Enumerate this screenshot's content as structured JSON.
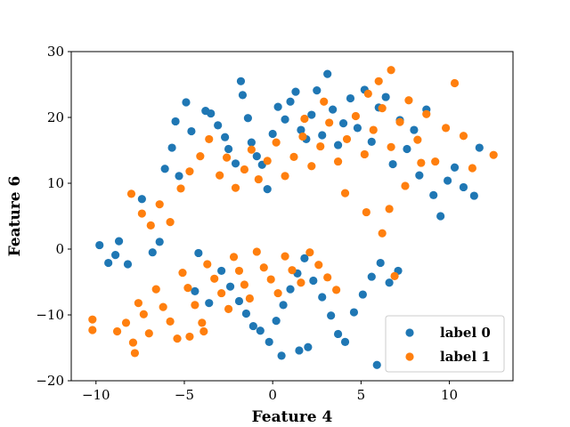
{
  "chart_data": {
    "type": "scatter",
    "xlabel": "Feature 4",
    "ylabel": "Feature 6",
    "xlim": [
      -11.4,
      13.6
    ],
    "ylim": [
      -20,
      30
    ],
    "xticks": [
      -10,
      -5,
      0,
      5,
      10
    ],
    "yticks": [
      -20,
      -10,
      0,
      10,
      20,
      30
    ],
    "grid": false,
    "legend_position": "lower-right",
    "series": [
      {
        "name": "label 0",
        "color": "#1f77b4",
        "points": [
          [
            -9.8,
            0.6
          ],
          [
            -9.3,
            -2.1
          ],
          [
            -8.9,
            -0.9
          ],
          [
            -8.7,
            1.2
          ],
          [
            -8.2,
            -2.3
          ],
          [
            -7.4,
            7.6
          ],
          [
            -6.8,
            -0.5
          ],
          [
            -6.4,
            1.1
          ],
          [
            -6.1,
            12.2
          ],
          [
            -5.7,
            15.4
          ],
          [
            -5.5,
            19.4
          ],
          [
            -5.3,
            11.1
          ],
          [
            -4.9,
            22.3
          ],
          [
            -4.6,
            17.9
          ],
          [
            -4.2,
            -0.6
          ],
          [
            -3.8,
            21.0
          ],
          [
            -3.5,
            20.6
          ],
          [
            -3.1,
            18.8
          ],
          [
            -2.7,
            17.0
          ],
          [
            -2.5,
            15.2
          ],
          [
            -2.1,
            13.0
          ],
          [
            -1.8,
            25.5
          ],
          [
            -1.7,
            23.4
          ],
          [
            -1.4,
            19.9
          ],
          [
            -1.2,
            16.2
          ],
          [
            -0.9,
            14.1
          ],
          [
            -0.6,
            12.8
          ],
          [
            -0.3,
            9.1
          ],
          [
            0.0,
            17.5
          ],
          [
            0.3,
            21.6
          ],
          [
            0.7,
            19.7
          ],
          [
            1.0,
            22.4
          ],
          [
            1.3,
            23.9
          ],
          [
            1.6,
            18.1
          ],
          [
            1.9,
            16.7
          ],
          [
            2.2,
            20.4
          ],
          [
            2.5,
            24.1
          ],
          [
            2.8,
            17.3
          ],
          [
            3.1,
            26.6
          ],
          [
            3.4,
            21.2
          ],
          [
            3.7,
            15.8
          ],
          [
            4.0,
            19.1
          ],
          [
            4.4,
            22.9
          ],
          [
            4.8,
            18.4
          ],
          [
            5.2,
            24.2
          ],
          [
            5.6,
            16.3
          ],
          [
            6.0,
            21.5
          ],
          [
            6.4,
            23.1
          ],
          [
            6.8,
            12.9
          ],
          [
            7.2,
            19.6
          ],
          [
            7.6,
            15.2
          ],
          [
            8.0,
            18.1
          ],
          [
            8.3,
            11.2
          ],
          [
            8.7,
            21.2
          ],
          [
            9.1,
            8.2
          ],
          [
            9.5,
            5.0
          ],
          [
            9.9,
            10.4
          ],
          [
            10.3,
            12.4
          ],
          [
            10.8,
            9.4
          ],
          [
            11.4,
            8.1
          ],
          [
            11.7,
            15.4
          ],
          [
            -2.9,
            -3.3
          ],
          [
            -2.4,
            -5.7
          ],
          [
            -1.9,
            -7.9
          ],
          [
            -1.5,
            -9.8
          ],
          [
            -1.1,
            -11.7
          ],
          [
            -0.7,
            -12.4
          ],
          [
            -0.2,
            -14.1
          ],
          [
            0.2,
            -10.9
          ],
          [
            0.6,
            -8.5
          ],
          [
            1.0,
            -6.1
          ],
          [
            1.4,
            -3.7
          ],
          [
            1.8,
            -1.4
          ],
          [
            2.3,
            -4.8
          ],
          [
            2.8,
            -7.3
          ],
          [
            3.3,
            -10.1
          ],
          [
            3.7,
            -12.9
          ],
          [
            4.1,
            -14.1
          ],
          [
            4.6,
            -9.6
          ],
          [
            5.1,
            -6.9
          ],
          [
            5.6,
            -4.2
          ],
          [
            6.1,
            -2.1
          ],
          [
            6.6,
            -5.1
          ],
          [
            7.1,
            -3.3
          ],
          [
            5.9,
            -17.6
          ],
          [
            0.5,
            -16.2
          ],
          [
            1.5,
            -15.4
          ],
          [
            2.0,
            -14.9
          ],
          [
            -3.6,
            -8.2
          ],
          [
            -4.4,
            -6.4
          ]
        ]
      },
      {
        "name": "label 1",
        "color": "#ff7f0e",
        "points": [
          [
            -10.2,
            -10.7
          ],
          [
            -10.2,
            -12.3
          ],
          [
            -8.8,
            -12.5
          ],
          [
            -8.3,
            -11.2
          ],
          [
            -7.9,
            -14.2
          ],
          [
            -7.8,
            -15.8
          ],
          [
            -7.6,
            -8.2
          ],
          [
            -7.3,
            -9.9
          ],
          [
            -7.0,
            -12.8
          ],
          [
            -6.6,
            -6.1
          ],
          [
            -6.2,
            -8.8
          ],
          [
            -5.8,
            -11.0
          ],
          [
            -5.4,
            -13.6
          ],
          [
            -5.1,
            -3.6
          ],
          [
            -4.8,
            -5.9
          ],
          [
            -4.4,
            -8.5
          ],
          [
            -4.0,
            -11.2
          ],
          [
            -3.7,
            -2.3
          ],
          [
            -3.3,
            -4.5
          ],
          [
            -2.9,
            -6.7
          ],
          [
            -2.5,
            -9.1
          ],
          [
            -2.2,
            -1.2
          ],
          [
            -1.9,
            -3.3
          ],
          [
            -1.6,
            -5.4
          ],
          [
            -1.3,
            -7.5
          ],
          [
            -0.9,
            -0.4
          ],
          [
            -0.5,
            -2.8
          ],
          [
            -0.1,
            -4.6
          ],
          [
            0.3,
            -6.7
          ],
          [
            0.7,
            -1.1
          ],
          [
            1.1,
            -3.2
          ],
          [
            1.6,
            -5.1
          ],
          [
            2.1,
            -0.5
          ],
          [
            2.6,
            -2.4
          ],
          [
            3.1,
            -4.3
          ],
          [
            3.6,
            -6.2
          ],
          [
            -8.0,
            8.4
          ],
          [
            -7.4,
            5.4
          ],
          [
            -6.9,
            3.6
          ],
          [
            -6.4,
            6.8
          ],
          [
            -5.8,
            4.1
          ],
          [
            -5.2,
            9.2
          ],
          [
            -4.7,
            11.8
          ],
          [
            -4.1,
            14.1
          ],
          [
            -3.6,
            16.7
          ],
          [
            -3.0,
            11.2
          ],
          [
            -2.6,
            13.9
          ],
          [
            -2.1,
            9.3
          ],
          [
            -1.6,
            12.1
          ],
          [
            -1.2,
            15.1
          ],
          [
            -0.8,
            10.6
          ],
          [
            -0.3,
            13.4
          ],
          [
            0.2,
            16.2
          ],
          [
            0.7,
            11.1
          ],
          [
            1.2,
            14.0
          ],
          [
            1.7,
            17.1
          ],
          [
            2.2,
            12.6
          ],
          [
            2.7,
            15.6
          ],
          [
            3.2,
            19.2
          ],
          [
            3.7,
            13.3
          ],
          [
            4.2,
            16.7
          ],
          [
            4.7,
            20.2
          ],
          [
            5.2,
            14.4
          ],
          [
            5.7,
            18.1
          ],
          [
            6.2,
            21.4
          ],
          [
            6.7,
            15.5
          ],
          [
            7.2,
            19.3
          ],
          [
            7.7,
            22.6
          ],
          [
            8.2,
            16.6
          ],
          [
            8.7,
            20.5
          ],
          [
            9.2,
            13.3
          ],
          [
            9.8,
            18.4
          ],
          [
            10.3,
            25.2
          ],
          [
            10.8,
            17.2
          ],
          [
            11.3,
            12.3
          ],
          [
            12.5,
            14.3
          ],
          [
            6.7,
            27.2
          ],
          [
            6.0,
            25.5
          ],
          [
            5.4,
            23.6
          ],
          [
            4.1,
            8.5
          ],
          [
            5.3,
            5.6
          ],
          [
            6.2,
            2.4
          ],
          [
            6.9,
            -4.1
          ],
          [
            6.6,
            6.1
          ],
          [
            7.5,
            9.6
          ],
          [
            8.4,
            13.1
          ],
          [
            2.9,
            22.4
          ],
          [
            1.8,
            19.8
          ],
          [
            -3.9,
            -12.5
          ],
          [
            -4.7,
            -13.3
          ]
        ]
      }
    ]
  }
}
